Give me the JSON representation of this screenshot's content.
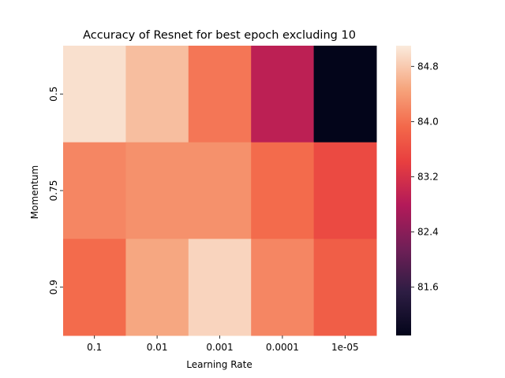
{
  "chart_data": {
    "type": "heatmap",
    "title": "Accuracy of Resnet for best epoch excluding 10",
    "xlabel": "Learning Rate",
    "ylabel": "Momentum",
    "x_categories": [
      "0.1",
      "0.01",
      "0.001",
      "0.0001",
      "1e-05"
    ],
    "y_categories": [
      "0.5",
      "0.75",
      "0.9"
    ],
    "values": [
      [
        85.0,
        84.7,
        84.05,
        82.9,
        80.9
      ],
      [
        84.2,
        84.3,
        84.3,
        83.95,
        83.55
      ],
      [
        83.95,
        84.5,
        84.9,
        84.2,
        83.8
      ]
    ],
    "colorbar": {
      "vmin": 80.9,
      "vmax": 85.1,
      "ticks": [
        "84.8",
        "84.0",
        "83.2",
        "82.4",
        "81.6"
      ],
      "colormap": "rocket"
    },
    "grid": false,
    "legend": "colorbar-right"
  }
}
